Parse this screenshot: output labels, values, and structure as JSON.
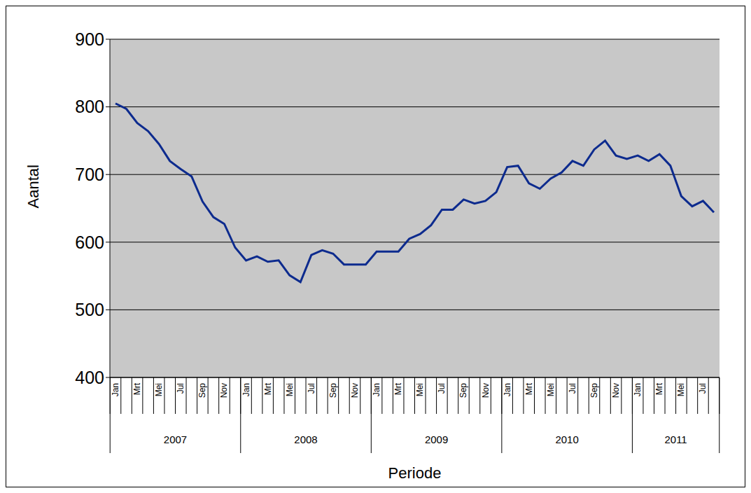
{
  "chart_data": {
    "type": "line",
    "x_label": "Periode",
    "y_label": "Aantal",
    "categories": [
      "Jan",
      null,
      "Mrt",
      null,
      "Mei",
      null,
      "Jul",
      null,
      "Sep",
      null,
      "Nov",
      null,
      "Jan",
      null,
      "Mrt",
      null,
      "Mei",
      null,
      "Jul",
      null,
      "Sep",
      null,
      "Nov",
      null,
      "Jan",
      null,
      "Mrt",
      null,
      "Mei",
      null,
      "Jul",
      null,
      "Sep",
      null,
      "Nov",
      null,
      "Jan",
      null,
      "Mrt",
      null,
      "Mei",
      null,
      "Jul",
      null,
      "Sep",
      null,
      "Nov",
      null,
      "Jan",
      null,
      "Mrt",
      null,
      "Mei",
      null,
      "Jul",
      null
    ],
    "x_groups": [
      "2007",
      "2008",
      "2009",
      "2010",
      "2011"
    ],
    "values": [
      805,
      797,
      776,
      764,
      745,
      720,
      708,
      697,
      660,
      637,
      627,
      592,
      573,
      579,
      571,
      573,
      551,
      541,
      581,
      588,
      583,
      567,
      567,
      567,
      586,
      586,
      586,
      605,
      612,
      625,
      648,
      648,
      663,
      657,
      661,
      674,
      711,
      713,
      687,
      679,
      694,
      703,
      720,
      713,
      737,
      750,
      728,
      723,
      728,
      720,
      730,
      713,
      668,
      653,
      661,
      644
    ],
    "color": "#0d2b8e",
    "ylim": [
      400,
      900
    ],
    "yticks": [
      400,
      500,
      600,
      700,
      800,
      900
    ],
    "grid": true
  }
}
